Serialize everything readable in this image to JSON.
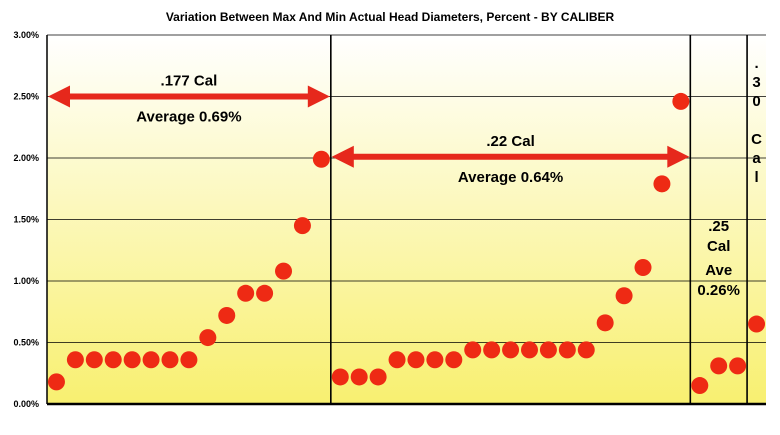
{
  "chart_data": {
    "type": "scatter",
    "title": "Variation Between Max And Min Actual Head Diameters, Percent - BY CALIBER",
    "xlabel": "",
    "ylabel": "",
    "ylim": [
      0,
      0.03
    ],
    "yticks": [
      "0.00%",
      "0.50%",
      "1.00%",
      "1.50%",
      "2.00%",
      "2.50%",
      "3.00%"
    ],
    "grid": true,
    "legend": "none",
    "colors": {
      "marker": "#ee2a14",
      "arrow": "#e6281c",
      "background_top": "#ffffff",
      "background_bottom": "#f8f070",
      "divider": "#000000"
    },
    "series": [
      {
        "values": [
          0.0018,
          0.0036,
          0.0036,
          0.0036,
          0.0036,
          0.0036,
          0.0036,
          0.0036,
          0.0054,
          0.0072,
          0.009,
          0.009,
          0.0108,
          0.0145,
          0.0199,
          0.0022,
          0.0022,
          0.0022,
          0.0036,
          0.0036,
          0.0036,
          0.0036,
          0.0044,
          0.0044,
          0.0044,
          0.0044,
          0.0044,
          0.0044,
          0.0044,
          0.0066,
          0.0088,
          0.0111,
          0.0179,
          0.0246,
          0.0015,
          0.0031,
          0.0031,
          0.0065
        ]
      }
    ],
    "sections": [
      {
        "label": ".177 Cal",
        "average": "Average 0.69%",
        "start": 0,
        "end": 15
      },
      {
        "label": ".22 Cal",
        "average": "Average 0.64%",
        "start": 15,
        "end": 34
      },
      {
        "label_lines": [
          ".25",
          "Cal"
        ],
        "average_lines": [
          "Ave",
          "0.26%"
        ],
        "start": 34,
        "end": 37
      },
      {
        "label_chars": [
          ".",
          "3",
          "0",
          "",
          "C",
          "a",
          "l"
        ],
        "start": 37,
        "end": 38
      }
    ]
  }
}
